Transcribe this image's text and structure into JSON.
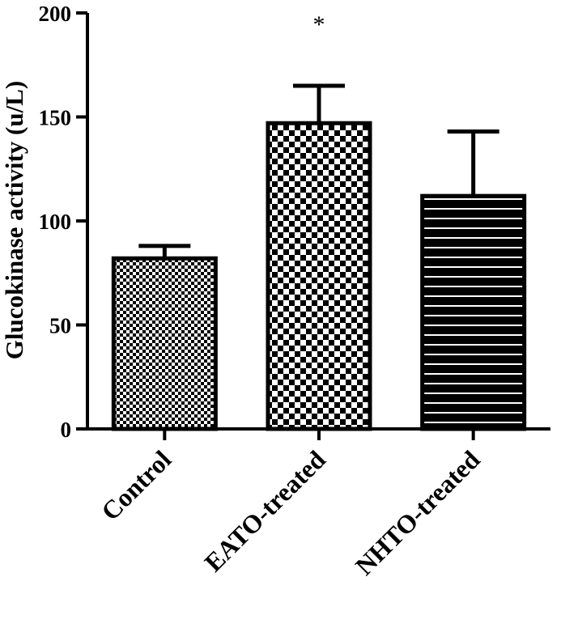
{
  "chart_data": {
    "type": "bar",
    "title": "",
    "xlabel": "",
    "ylabel": "Glucokinase activity (u/L)",
    "ylim": [
      0,
      200
    ],
    "yticks": [
      0,
      50,
      100,
      150,
      200
    ],
    "ytick_labels": [
      "0",
      "50",
      "100",
      "150",
      "200"
    ],
    "categories": [
      "Control",
      "EATO-treated",
      "NHTO-treated"
    ],
    "values": [
      82,
      147,
      112
    ],
    "error_upper": [
      88,
      165,
      143
    ],
    "patterns": [
      "fine-checker",
      "coarse-checker",
      "horizontal-stripes"
    ],
    "annotations": [
      {
        "category": "EATO-treated",
        "text": "*"
      }
    ],
    "grid": false,
    "legend": "none"
  }
}
